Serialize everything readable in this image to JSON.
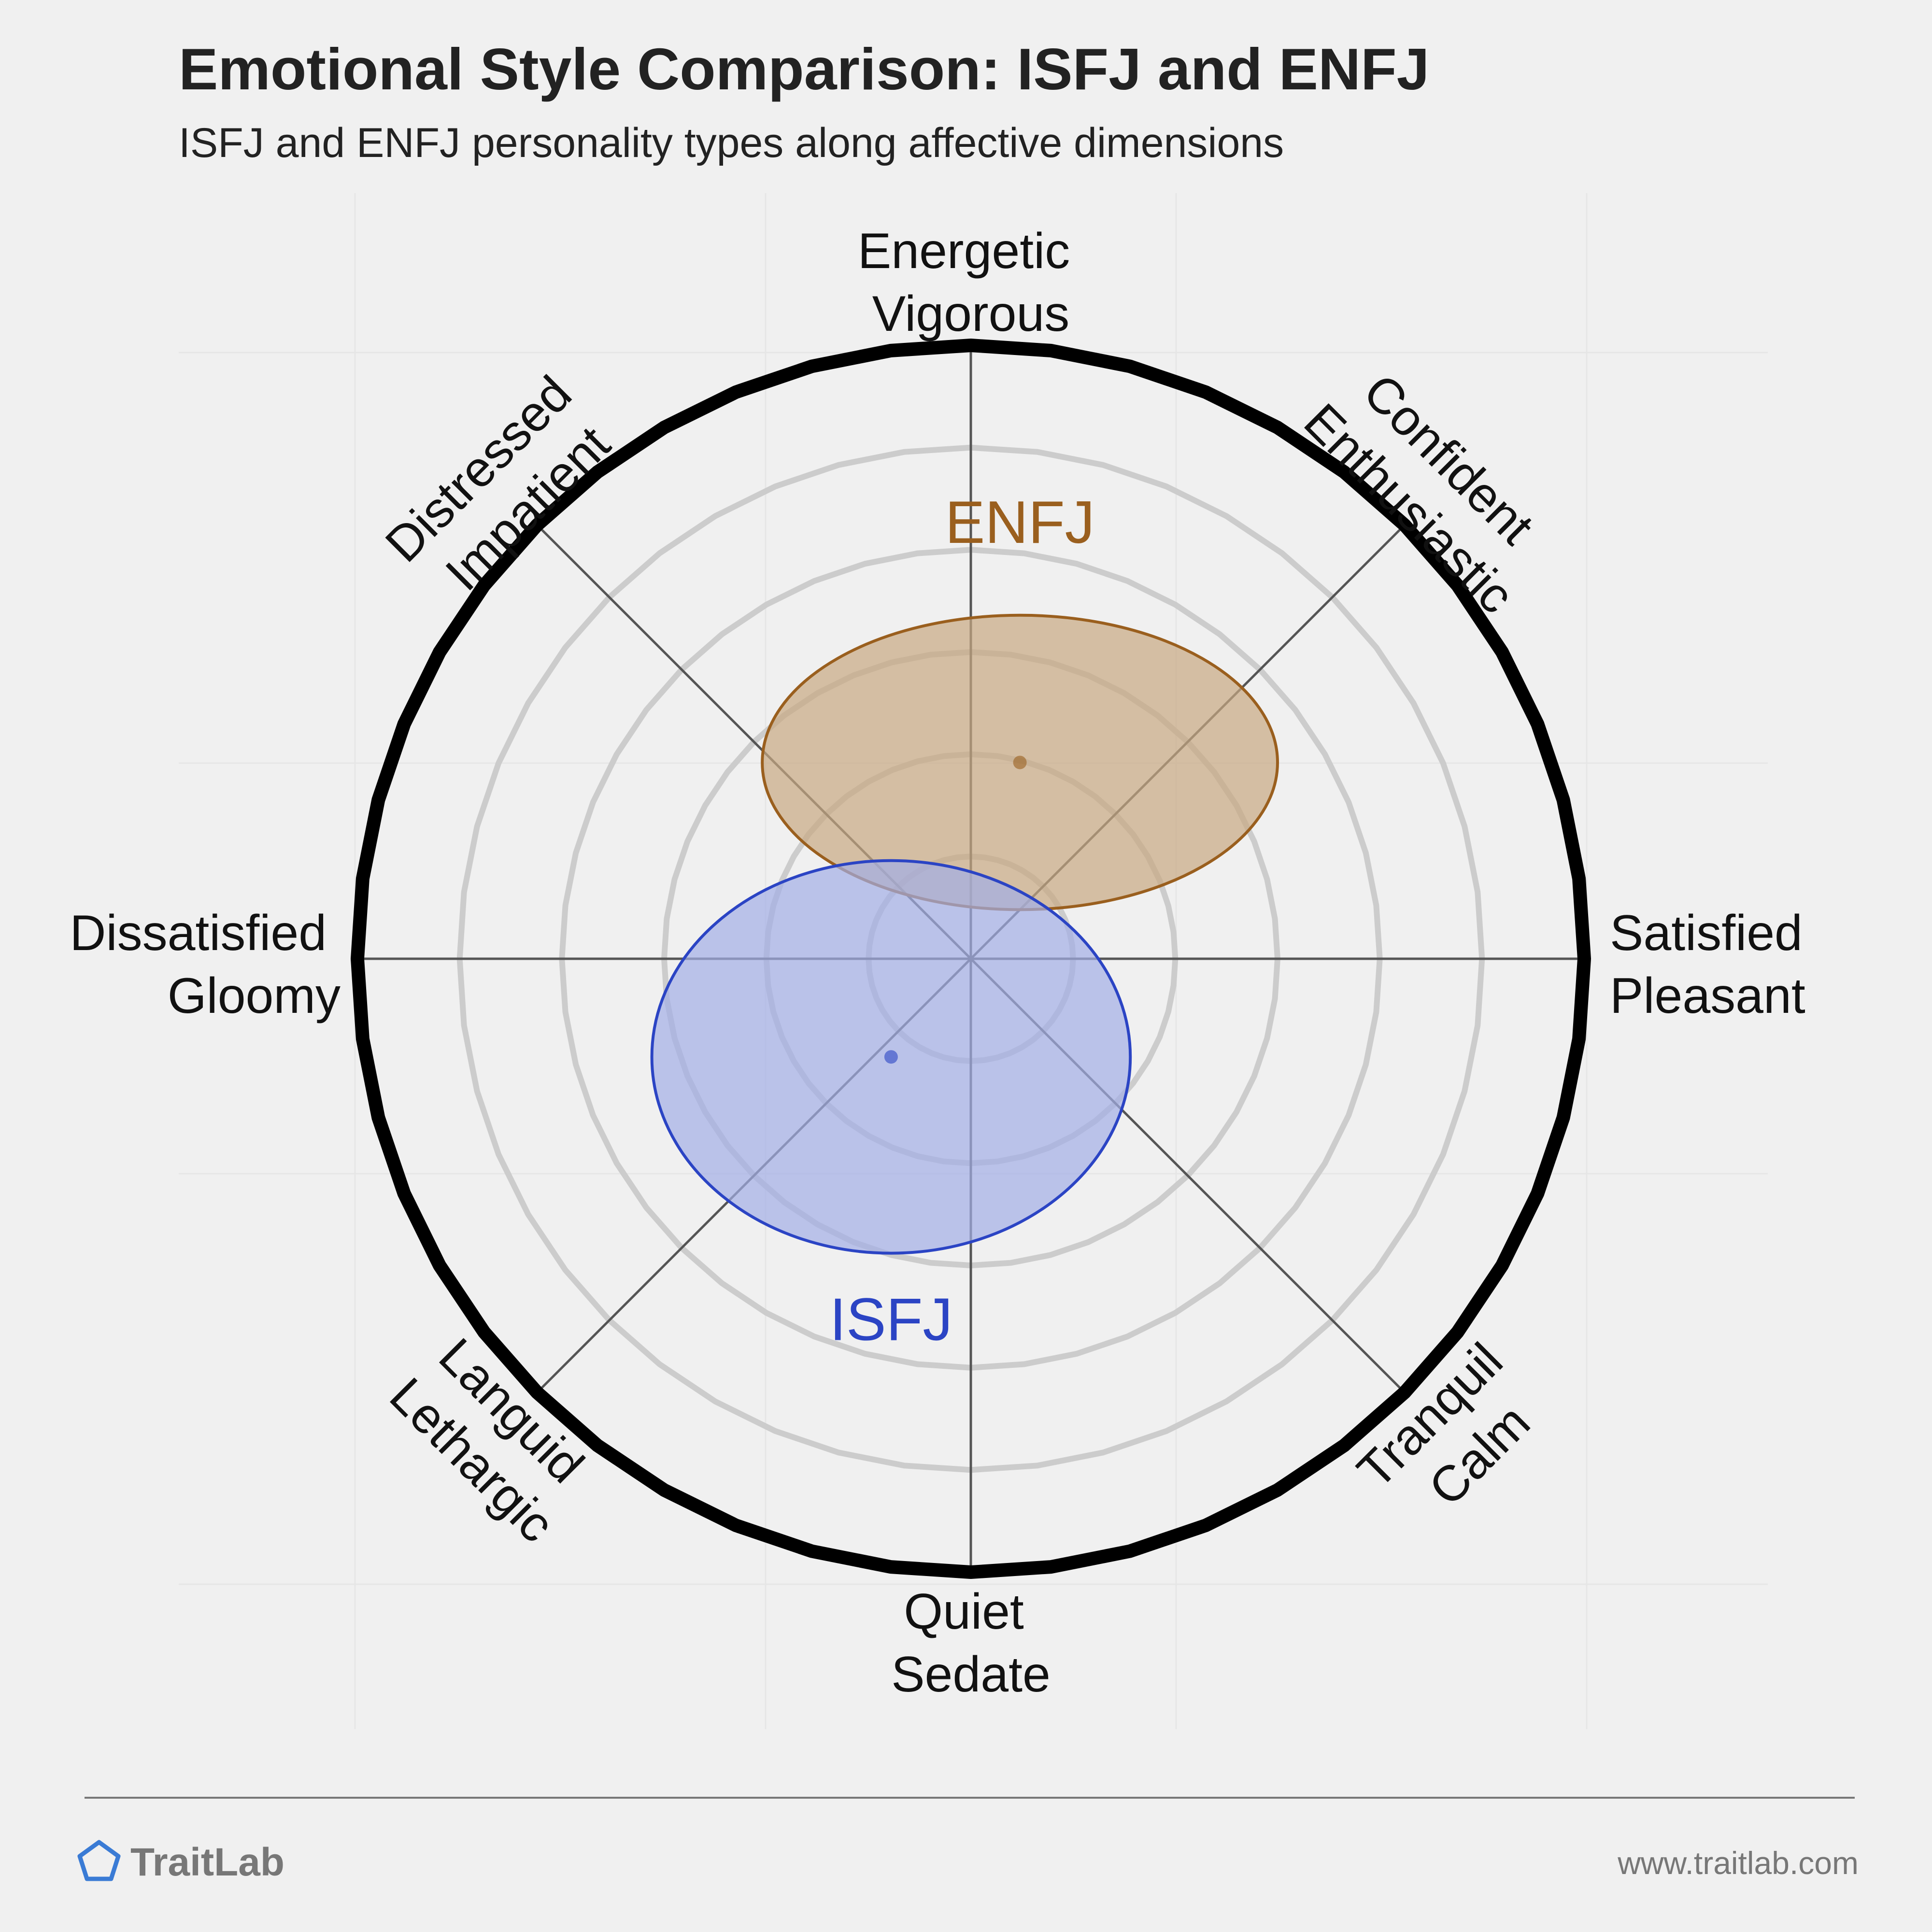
{
  "header": {
    "title": "Emotional Style Comparison: ISFJ and ENFJ",
    "subtitle": "ISFJ and ENFJ personality types along affective dimensions"
  },
  "chart_data": {
    "type": "scatter",
    "title": "Emotional Style Comparison: ISFJ and ENFJ",
    "subtitle": "ISFJ and ENFJ personality types along affective dimensions",
    "x_axis": {
      "min": -1,
      "max": 1,
      "negative_label": [
        "Dissatisfied",
        "Gloomy"
      ],
      "positive_label": [
        "Satisfied",
        "Pleasant"
      ]
    },
    "y_axis": {
      "min": -1,
      "max": 1,
      "negative_label": [
        "Quiet",
        "Sedate"
      ],
      "positive_label": [
        "Energetic",
        "Vigorous"
      ]
    },
    "diagonal_labels": {
      "upper_right": [
        "Confident",
        "Enthusiastic"
      ],
      "upper_left": [
        "Distressed",
        "Impatient"
      ],
      "lower_left": [
        "Languid",
        "Lethargic"
      ],
      "lower_right": [
        "Tranquil",
        "Calm"
      ]
    },
    "grid_rings": 6,
    "series": [
      {
        "name": "ENFJ",
        "x": 0.08,
        "y": 0.32,
        "spread_x": 0.42,
        "spread_y": 0.24,
        "color": "#9a5f1e",
        "fill": "#c8a882"
      },
      {
        "name": "ISFJ",
        "x": -0.13,
        "y": -0.16,
        "spread_x": 0.39,
        "spread_y": 0.32,
        "color": "#2b44c4",
        "fill": "#a3aee6"
      }
    ]
  },
  "footer": {
    "brand": "TraitLab",
    "url": "www.traitlab.com"
  },
  "colors": {
    "background": "#f0f0f0",
    "ring": "#cccccc",
    "outer_ring": "#000000",
    "axis": "#555555",
    "brand_icon": "#3a7bd5",
    "footer_text": "#666666"
  }
}
